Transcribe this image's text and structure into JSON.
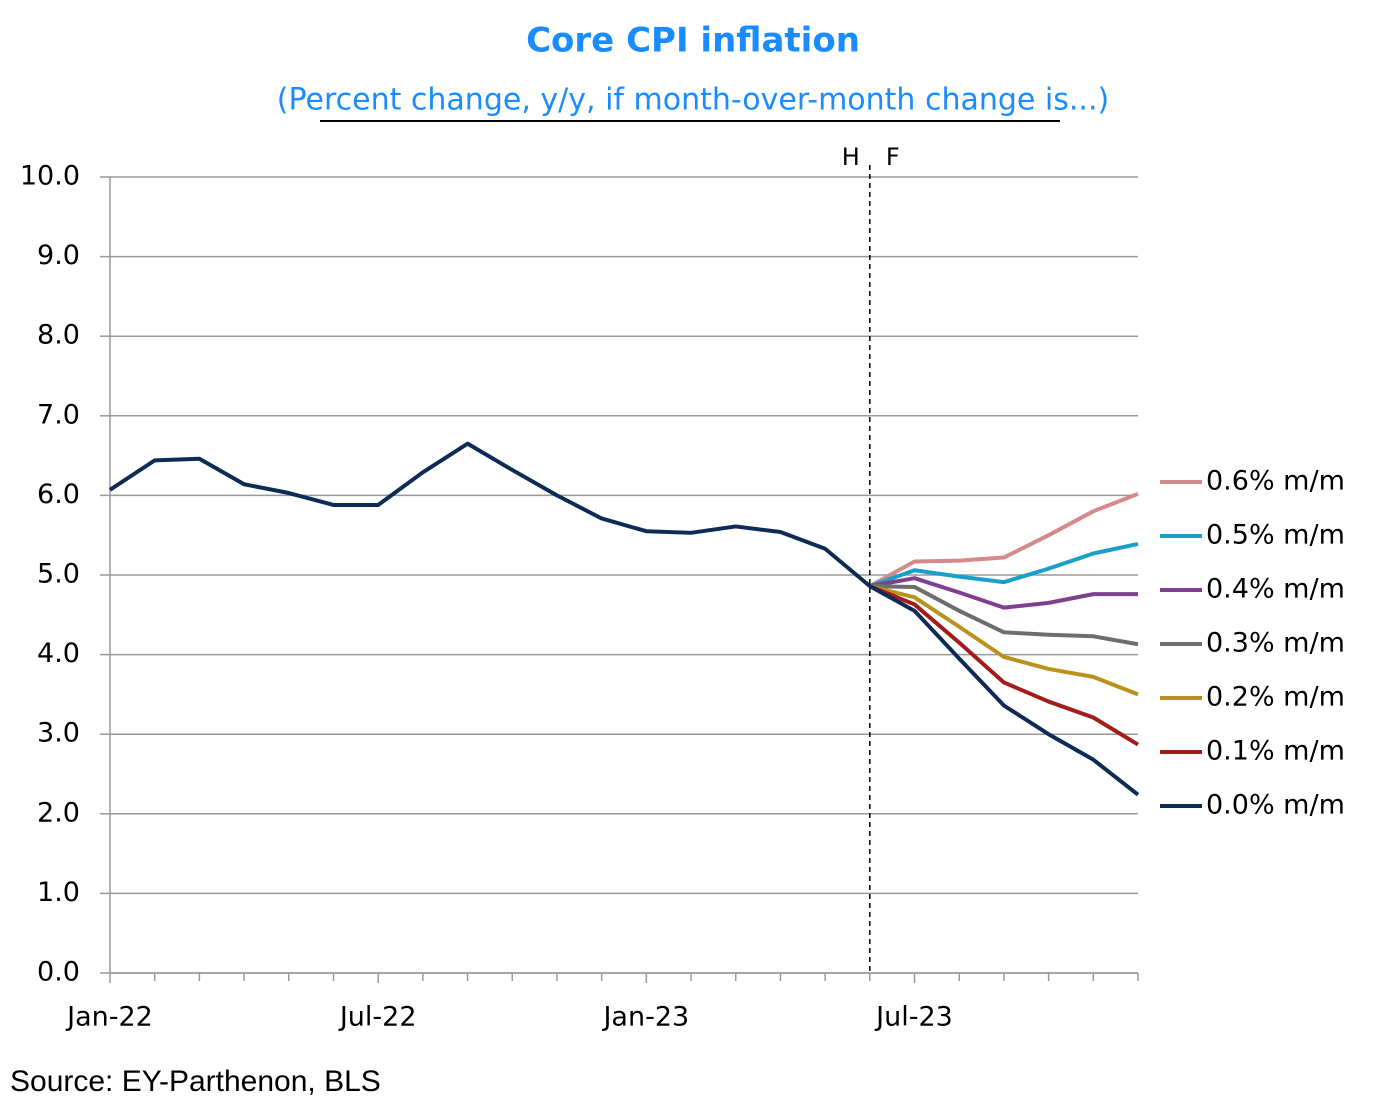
{
  "chart_data": {
    "type": "line",
    "title": "Core CPI inflation",
    "subtitle": "(Percent change, y/y, if month-over-month change is...)",
    "source": "Source: EY-Parthenon, BLS",
    "annotations": [
      "H",
      "F"
    ],
    "categories": [
      "Jan-22",
      null,
      null,
      null,
      null,
      null,
      "Jul-22",
      null,
      null,
      null,
      null,
      null,
      "Jan-23",
      null,
      null,
      null,
      null,
      null,
      "Jul-23",
      null,
      null,
      null,
      null,
      null
    ],
    "series": [
      {
        "name": "0.6% m/m",
        "color": "#d48a8a",
        "values": [
          null,
          null,
          null,
          null,
          null,
          null,
          null,
          null,
          null,
          null,
          null,
          null,
          null,
          null,
          null,
          null,
          null,
          4.86,
          5.17,
          5.18,
          5.22,
          5.5,
          5.8,
          6.02
        ]
      },
      {
        "name": "0.5% m/m",
        "color": "#1a9fc9",
        "values": [
          null,
          null,
          null,
          null,
          null,
          null,
          null,
          null,
          null,
          null,
          null,
          null,
          null,
          null,
          null,
          null,
          null,
          4.86,
          5.06,
          4.98,
          4.91,
          5.08,
          5.27,
          5.39
        ]
      },
      {
        "name": "0.4% m/m",
        "color": "#7e3f8f",
        "values": [
          null,
          null,
          null,
          null,
          null,
          null,
          null,
          null,
          null,
          null,
          null,
          null,
          null,
          null,
          null,
          null,
          null,
          4.86,
          4.96,
          4.78,
          4.59,
          4.65,
          4.76,
          4.76
        ]
      },
      {
        "name": "0.3% m/m",
        "color": "#6d6d6d",
        "values": [
          null,
          null,
          null,
          null,
          null,
          null,
          null,
          null,
          null,
          null,
          null,
          null,
          null,
          null,
          null,
          null,
          null,
          4.86,
          4.85,
          4.55,
          4.28,
          4.25,
          4.23,
          4.13
        ]
      },
      {
        "name": "0.2% m/m",
        "color": "#b8921c",
        "values": [
          null,
          null,
          null,
          null,
          null,
          null,
          null,
          null,
          null,
          null,
          null,
          null,
          null,
          null,
          null,
          null,
          null,
          4.86,
          4.72,
          4.35,
          3.97,
          3.82,
          3.72,
          3.5
        ]
      },
      {
        "name": "0.1% m/m",
        "color": "#a31c1c",
        "values": [
          null,
          null,
          null,
          null,
          null,
          null,
          null,
          null,
          null,
          null,
          null,
          null,
          null,
          null,
          null,
          null,
          null,
          4.86,
          4.63,
          4.15,
          3.65,
          3.41,
          3.21,
          2.87
        ]
      },
      {
        "name": "0.0% m/m",
        "color": "#0d2b55",
        "values": [
          6.07,
          6.44,
          6.46,
          6.14,
          6.03,
          5.88,
          5.88,
          6.29,
          6.65,
          6.32,
          6.0,
          5.71,
          5.55,
          5.53,
          5.61,
          5.54,
          5.33,
          4.86,
          4.55,
          3.95,
          3.36,
          3.0,
          2.68,
          2.24
        ]
      }
    ],
    "ylim": [
      0,
      10
    ],
    "yticks": [
      {
        "value": 0,
        "label": "0.0"
      },
      {
        "value": 1,
        "label": "1.0"
      },
      {
        "value": 2,
        "label": "2.0"
      },
      {
        "value": 3,
        "label": "3.0"
      },
      {
        "value": 4,
        "label": "4.0"
      },
      {
        "value": 5,
        "label": "5.0"
      },
      {
        "value": 6,
        "label": "6.0"
      },
      {
        "value": 7,
        "label": "7.0"
      },
      {
        "value": 8,
        "label": "8.0"
      },
      {
        "value": 9,
        "label": "9.0"
      },
      {
        "value": 10,
        "label": "10.0"
      }
    ],
    "grid": true
  }
}
